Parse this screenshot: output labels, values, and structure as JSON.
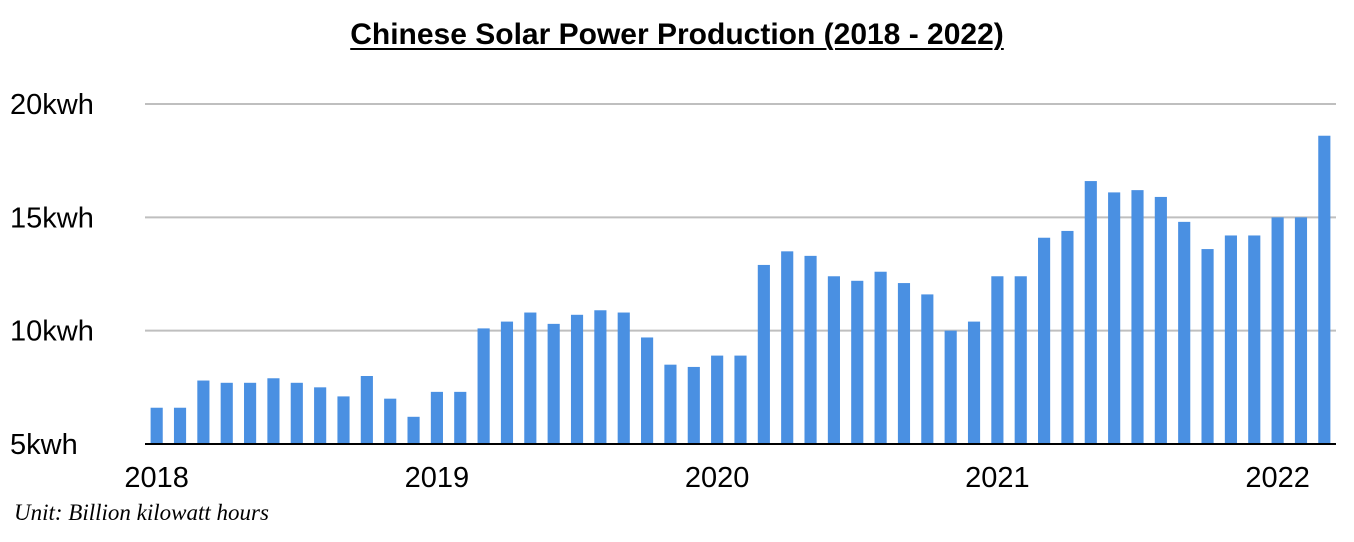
{
  "note": "Unit: Billion kilowatt hours",
  "chart_data": {
    "type": "bar",
    "title": "Chinese Solar Power Production (2018 - 2022)",
    "xlabel": "",
    "ylabel": "",
    "ylim": [
      5,
      20
    ],
    "y_ticks": [
      {
        "value": 5,
        "label": "5kwh"
      },
      {
        "value": 10,
        "label": "10kwh"
      },
      {
        "value": 15,
        "label": "15kwh"
      },
      {
        "value": 20,
        "label": "20kwh"
      }
    ],
    "x_ticks": [
      {
        "index": 0,
        "label": "2018"
      },
      {
        "index": 12,
        "label": "2019"
      },
      {
        "index": 24,
        "label": "2020"
      },
      {
        "index": 36,
        "label": "2021"
      },
      {
        "index": 48,
        "label": "2022"
      }
    ],
    "grid": true,
    "legend": "none",
    "colors": {
      "bar": "#4a90e2",
      "grid": "#bfbfbf",
      "axis": "#000000"
    },
    "categories": [
      "2018-01",
      "2018-02",
      "2018-03",
      "2018-04",
      "2018-05",
      "2018-06",
      "2018-07",
      "2018-08",
      "2018-09",
      "2018-10",
      "2018-11",
      "2018-12",
      "2019-01",
      "2019-02",
      "2019-03",
      "2019-04",
      "2019-05",
      "2019-06",
      "2019-07",
      "2019-08",
      "2019-09",
      "2019-10",
      "2019-11",
      "2019-12",
      "2020-01",
      "2020-02",
      "2020-03",
      "2020-04",
      "2020-05",
      "2020-06",
      "2020-07",
      "2020-08",
      "2020-09",
      "2020-10",
      "2020-11",
      "2020-12",
      "2021-01",
      "2021-02",
      "2021-03",
      "2021-04",
      "2021-05",
      "2021-06",
      "2021-07",
      "2021-08",
      "2021-09",
      "2021-10",
      "2021-11",
      "2021-12",
      "2022-01",
      "2022-02",
      "2022-03"
    ],
    "values": [
      6.6,
      6.6,
      7.8,
      7.7,
      7.7,
      7.9,
      7.7,
      7.5,
      7.1,
      8.0,
      7.0,
      6.2,
      7.3,
      7.3,
      10.1,
      10.4,
      10.8,
      10.3,
      10.7,
      10.9,
      10.8,
      9.7,
      8.5,
      8.4,
      8.9,
      8.9,
      12.9,
      13.5,
      13.3,
      12.4,
      12.2,
      12.6,
      12.1,
      11.6,
      10.0,
      10.4,
      12.4,
      12.4,
      14.1,
      14.4,
      16.6,
      16.1,
      16.2,
      15.9,
      14.8,
      13.6,
      14.2,
      14.2,
      15.0,
      15.0,
      18.6
    ]
  }
}
